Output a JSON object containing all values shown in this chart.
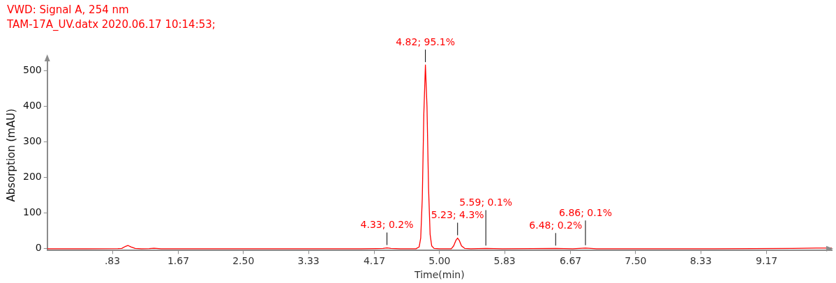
{
  "chart_data": {
    "type": "line",
    "title": "VWD: Signal A, 254 nm",
    "subtitle": "TAM-17A_UV.datx 2020.06.17 10:14:53;",
    "xlabel": "Time(min)",
    "ylabel": "Absorption (mAU)",
    "x": [
      0,
      0.5,
      0.9,
      0.95,
      1.0,
      1.03,
      1.07,
      1.12,
      1.2,
      1.3,
      1.36,
      1.45,
      2.0,
      3.0,
      4.0,
      4.2,
      4.28,
      4.33,
      4.38,
      4.5,
      4.7,
      4.74,
      4.76,
      4.78,
      4.8,
      4.82,
      4.84,
      4.86,
      4.88,
      4.9,
      4.93,
      5.0,
      5.1,
      5.15,
      5.18,
      5.21,
      5.23,
      5.25,
      5.28,
      5.32,
      5.4,
      5.59,
      5.8,
      6.48,
      6.7,
      6.86,
      7.0,
      7.5,
      8.5,
      9.5,
      9.8,
      10
    ],
    "series": [
      {
        "color": "#ff0000",
        "values": [
          0,
          0,
          0.5,
          1,
          7,
          9,
          5,
          1,
          0,
          0.5,
          1.5,
          0,
          0,
          0,
          0,
          0.5,
          1,
          2.5,
          1,
          0,
          0,
          5,
          30,
          140,
          380,
          516,
          400,
          170,
          40,
          8,
          1,
          0,
          0,
          0,
          8,
          24,
          30,
          24,
          8,
          1,
          0,
          1,
          0,
          1,
          0,
          2,
          0,
          0,
          0,
          1,
          2,
          2
        ]
      }
    ],
    "xlim": [
      0,
      10
    ],
    "ylim": [
      -5,
      530
    ],
    "xticks": [
      {
        "value": 0.83,
        "label": ".83"
      },
      {
        "value": 1.67,
        "label": "1.67"
      },
      {
        "value": 2.5,
        "label": "2.50"
      },
      {
        "value": 3.33,
        "label": "3.33"
      },
      {
        "value": 4.17,
        "label": "4.17"
      },
      {
        "value": 5,
        "label": "5.00"
      },
      {
        "value": 5.83,
        "label": "5.83"
      },
      {
        "value": 6.67,
        "label": "6.67"
      },
      {
        "value": 7.5,
        "label": "7.50"
      },
      {
        "value": 8.33,
        "label": "8.33"
      },
      {
        "value": 9.17,
        "label": "9.17"
      }
    ],
    "yticks": [
      0,
      100,
      200,
      300,
      400,
      500
    ],
    "grid": false,
    "legend": false,
    "marker": "none",
    "line_style": "solid",
    "annotations": [
      {
        "text": "4.33; 0.2%",
        "x": 4.33,
        "y": 2.5
      },
      {
        "text": "4.82; 95.1%",
        "x": 4.82,
        "y": 516
      },
      {
        "text": "5.23; 4.3%",
        "x": 5.23,
        "y": 30
      },
      {
        "text": "5.59; 0.1%",
        "x": 5.59,
        "y": 1
      },
      {
        "text": "6.48; 0.2%",
        "x": 6.48,
        "y": 1
      },
      {
        "text": "6.86; 0.1%",
        "x": 6.86,
        "y": 2
      }
    ]
  }
}
